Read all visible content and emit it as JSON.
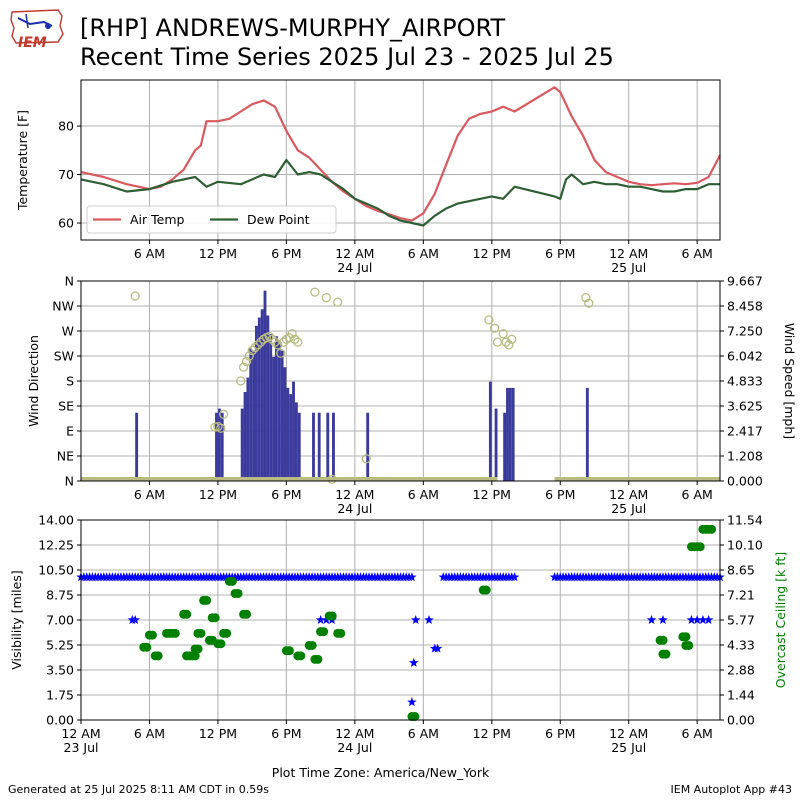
{
  "header": {
    "logo_text": "IEM",
    "title_line1": "[RHP] ANDREWS-MURPHY_AIRPORT",
    "title_line2": "Recent Time Series 2025 Jul 23 - 2025 Jul 25"
  },
  "footer": {
    "generated": "Generated at 25 Jul 2025 8:11 AM CDT in 0.59s",
    "app": "IEM Autoplot App #43"
  },
  "colors": {
    "air_temp": "#d9595f",
    "dew_point": "#2e5f33",
    "wind_speed": "#3a3a9c",
    "wind_dir": "#b9bb80",
    "visibility": "#0000ff",
    "ceiling": "#008000",
    "grid": "#b0b0b0"
  },
  "chart_data": [
    {
      "type": "line",
      "title": "",
      "xlabel": "",
      "ylabel": "Temperature [F]",
      "ylim": [
        56.5,
        89.5
      ],
      "yticks": [
        60,
        70,
        80
      ],
      "xlim": [
        "2025-07-23 00:00",
        "2025-07-25 08:00"
      ],
      "xtick_labels": [
        "6 AM",
        "12 PM",
        "6 PM",
        "12 AM",
        "6 AM",
        "12 PM",
        "6 PM",
        "12 AM",
        "6 AM"
      ],
      "xtick_hours": [
        6,
        12,
        18,
        24,
        30,
        36,
        42,
        48,
        54
      ],
      "date_labels": [
        {
          "label": "24 Jul",
          "hour": 24
        },
        {
          "label": "25 Jul",
          "hour": 48
        }
      ],
      "grid": true,
      "legend_position": "lower-left",
      "series": [
        {
          "name": "Air Temp",
          "x": [
            "2025-07-23 00:00",
            "2025-07-23 02:00",
            "2025-07-23 04:00",
            "2025-07-23 06:00",
            "2025-07-23 07:00",
            "2025-07-23 08:00",
            "2025-07-23 09:00",
            "2025-07-23 10:00",
            "2025-07-23 10:30",
            "2025-07-23 11:00",
            "2025-07-23 12:00",
            "2025-07-23 13:00",
            "2025-07-23 14:00",
            "2025-07-23 15:00",
            "2025-07-23 16:00",
            "2025-07-23 17:00",
            "2025-07-23 18:00",
            "2025-07-23 19:00",
            "2025-07-23 20:00",
            "2025-07-23 21:00",
            "2025-07-23 22:00",
            "2025-07-23 23:00",
            "2025-07-24 00:00",
            "2025-07-24 01:00",
            "2025-07-24 02:00",
            "2025-07-24 03:00",
            "2025-07-24 04:00",
            "2025-07-24 05:00",
            "2025-07-24 06:00",
            "2025-07-24 07:00",
            "2025-07-24 08:00",
            "2025-07-24 09:00",
            "2025-07-24 10:00",
            "2025-07-24 11:00",
            "2025-07-24 12:00",
            "2025-07-24 13:00",
            "2025-07-24 14:00",
            "2025-07-24 17:30",
            "2025-07-24 18:00",
            "2025-07-24 19:00",
            "2025-07-24 20:00",
            "2025-07-24 21:00",
            "2025-07-24 22:00",
            "2025-07-24 23:00",
            "2025-07-25 00:00",
            "2025-07-25 01:00",
            "2025-07-25 02:00",
            "2025-07-25 03:00",
            "2025-07-25 04:00",
            "2025-07-25 05:00",
            "2025-07-25 06:00",
            "2025-07-25 07:00",
            "2025-07-25 08:00"
          ],
          "values": [
            70.5,
            69.5,
            68,
            67,
            67.5,
            69,
            71,
            75,
            76,
            81,
            81,
            81.5,
            83,
            84.5,
            85.3,
            84,
            79,
            75,
            73.5,
            71,
            68.5,
            66.5,
            65,
            63.5,
            62.5,
            61.8,
            61,
            60.5,
            62,
            66,
            72,
            78,
            81.5,
            82.5,
            83,
            84,
            83,
            88,
            87,
            82,
            78,
            73,
            70.5,
            69.5,
            68.5,
            68,
            67.8,
            68,
            68.2,
            68,
            68.3,
            69.5,
            74
          ]
        },
        {
          "name": "Dew Point",
          "x": [
            "2025-07-23 00:00",
            "2025-07-23 02:00",
            "2025-07-23 04:00",
            "2025-07-23 06:00",
            "2025-07-23 08:00",
            "2025-07-23 10:00",
            "2025-07-23 11:00",
            "2025-07-23 12:00",
            "2025-07-23 14:00",
            "2025-07-23 16:00",
            "2025-07-23 17:00",
            "2025-07-23 18:00",
            "2025-07-23 19:00",
            "2025-07-23 20:00",
            "2025-07-23 21:00",
            "2025-07-23 22:00",
            "2025-07-23 23:00",
            "2025-07-24 00:00",
            "2025-07-24 01:00",
            "2025-07-24 02:00",
            "2025-07-24 03:00",
            "2025-07-24 04:00",
            "2025-07-24 05:00",
            "2025-07-24 06:00",
            "2025-07-24 07:00",
            "2025-07-24 08:00",
            "2025-07-24 09:00",
            "2025-07-24 10:00",
            "2025-07-24 11:00",
            "2025-07-24 12:00",
            "2025-07-24 13:00",
            "2025-07-24 14:00",
            "2025-07-24 17:30",
            "2025-07-24 18:00",
            "2025-07-24 18:30",
            "2025-07-24 19:00",
            "2025-07-24 20:00",
            "2025-07-24 21:00",
            "2025-07-24 22:00",
            "2025-07-24 23:00",
            "2025-07-25 00:00",
            "2025-07-25 01:00",
            "2025-07-25 02:00",
            "2025-07-25 03:00",
            "2025-07-25 04:00",
            "2025-07-25 05:00",
            "2025-07-25 06:00",
            "2025-07-25 07:00",
            "2025-07-25 08:00"
          ],
          "values": [
            69,
            68,
            66.5,
            67,
            68.5,
            69.5,
            67.5,
            68.5,
            68,
            70,
            69.5,
            73,
            70,
            70.5,
            70,
            68.5,
            67,
            65,
            64,
            63,
            61.5,
            60.5,
            60,
            59.5,
            61.5,
            63,
            64,
            64.5,
            65,
            65.5,
            65,
            67.5,
            65.5,
            65,
            69,
            70,
            68,
            68.5,
            68,
            68,
            67.5,
            67.5,
            67,
            66.5,
            66.5,
            67,
            67,
            68,
            68
          ]
        }
      ]
    },
    {
      "type": "bar",
      "title": "",
      "xlabel": "",
      "ylabel": "Wind Direction",
      "ylabel_right": "Wind Speed [mph]",
      "ylim": [
        0,
        360
      ],
      "ylim_right": [
        0,
        9.667
      ],
      "direction_ticks": [
        "N",
        "NE",
        "E",
        "SE",
        "S",
        "SW",
        "W",
        "NW",
        "N"
      ],
      "speed_ticks": [
        "0.000",
        "1.208",
        "2.417",
        "3.625",
        "4.833",
        "6.042",
        "7.250",
        "8.458",
        "9.667"
      ],
      "xtick_labels": [
        "6 AM",
        "12 PM",
        "6 PM",
        "12 AM",
        "6 AM",
        "12 PM",
        "6 PM",
        "12 AM",
        "6 AM"
      ],
      "xtick_hours": [
        6,
        12,
        18,
        24,
        30,
        36,
        42,
        48,
        54
      ],
      "date_labels": [
        {
          "label": "24 Jul",
          "hour": 24
        },
        {
          "label": "25 Jul",
          "hour": 48
        }
      ],
      "grid": true,
      "series": [
        {
          "name": "Wind Speed",
          "x": [
            "2025-07-23 04:45",
            "2025-07-23 11:45",
            "2025-07-23 12:00",
            "2025-07-23 12:15",
            "2025-07-23 14:00",
            "2025-07-23 14:15",
            "2025-07-23 14:30",
            "2025-07-23 14:45",
            "2025-07-23 15:00",
            "2025-07-23 15:15",
            "2025-07-23 15:30",
            "2025-07-23 15:45",
            "2025-07-23 16:00",
            "2025-07-23 16:15",
            "2025-07-23 16:30",
            "2025-07-23 16:45",
            "2025-07-23 17:00",
            "2025-07-23 17:15",
            "2025-07-23 17:30",
            "2025-07-23 17:45",
            "2025-07-23 18:00",
            "2025-07-23 18:15",
            "2025-07-23 18:30",
            "2025-07-23 18:45",
            "2025-07-23 19:00",
            "2025-07-23 20:15",
            "2025-07-23 20:45",
            "2025-07-23 21:30",
            "2025-07-23 22:00",
            "2025-07-24 01:00",
            "2025-07-24 11:45",
            "2025-07-24 12:15",
            "2025-07-24 13:00",
            "2025-07-24 13:15",
            "2025-07-24 13:30",
            "2025-07-24 13:45",
            "2025-07-24 20:15"
          ],
          "values": [
            3.3,
            3.3,
            3.5,
            3.3,
            3.5,
            4.3,
            5.0,
            6.4,
            6.3,
            7.5,
            7.9,
            8.3,
            9.2,
            8.0,
            7.1,
            6.0,
            7.0,
            6.8,
            6.3,
            5.5,
            4.5,
            4.2,
            4.8,
            3.8,
            3.3,
            3.3,
            3.3,
            3.3,
            3.3,
            3.3,
            4.8,
            3.5,
            3.3,
            4.5,
            4.5,
            4.5,
            4.5
          ]
        },
        {
          "name": "Wind Direction",
          "x": [
            "2025-07-23 04:45",
            "2025-07-23 11:45",
            "2025-07-23 12:00",
            "2025-07-23 12:15",
            "2025-07-23 12:30",
            "2025-07-23 14:00",
            "2025-07-23 14:15",
            "2025-07-23 14:30",
            "2025-07-23 14:45",
            "2025-07-23 15:00",
            "2025-07-23 15:15",
            "2025-07-23 15:30",
            "2025-07-23 15:45",
            "2025-07-23 16:00",
            "2025-07-23 16:15",
            "2025-07-23 16:30",
            "2025-07-23 16:45",
            "2025-07-23 17:00",
            "2025-07-23 17:15",
            "2025-07-23 17:30",
            "2025-07-23 17:45",
            "2025-07-23 18:00",
            "2025-07-23 18:15",
            "2025-07-23 18:30",
            "2025-07-23 18:45",
            "2025-07-23 19:00",
            "2025-07-23 20:30",
            "2025-07-23 21:30",
            "2025-07-23 22:00",
            "2025-07-23 22:30",
            "2025-07-24 01:00",
            "2025-07-24 11:45",
            "2025-07-24 12:15",
            "2025-07-24 12:30",
            "2025-07-24 13:00",
            "2025-07-24 13:15",
            "2025-07-24 13:30",
            "2025-07-24 13:45",
            "2025-07-24 20:15",
            "2025-07-24 20:30"
          ],
          "values": [
            333,
            97,
            98,
            95,
            120,
            180,
            205,
            215,
            225,
            235,
            240,
            245,
            250,
            255,
            258,
            260,
            255,
            250,
            245,
            230,
            250,
            255,
            258,
            265,
            255,
            250,
            340,
            330,
            3,
            322,
            40,
            290,
            275,
            250,
            265,
            250,
            245,
            255,
            330,
            320
          ]
        }
      ]
    },
    {
      "type": "scatter",
      "title": "",
      "xlabel": "Plot Time Zone: America/New_York",
      "ylabel": "Visibility [miles]",
      "ylabel_right": "Overcast Ceiling [k ft]",
      "ylim": [
        0,
        14
      ],
      "ylim_right": [
        0,
        11.54
      ],
      "yticks": [
        "0.00",
        "1.75",
        "3.50",
        "5.25",
        "7.00",
        "8.75",
        "10.50",
        "12.25",
        "14.00"
      ],
      "yticks_right": [
        "0.00",
        "1.44",
        "2.88",
        "4.33",
        "5.77",
        "7.21",
        "8.65",
        "10.10",
        "11.54"
      ],
      "xtick_labels": [
        "12 AM",
        "6 AM",
        "12 PM",
        "6 PM",
        "12 AM",
        "6 AM",
        "12 PM",
        "6 PM",
        "12 AM",
        "6 AM"
      ],
      "xtick_hours": [
        0,
        6,
        12,
        18,
        24,
        30,
        36,
        42,
        48,
        54
      ],
      "date_labels": [
        {
          "label": "23 Jul",
          "hour": 0
        },
        {
          "label": "24 Jul",
          "hour": 24
        },
        {
          "label": "25 Jul",
          "hour": 48
        }
      ],
      "grid": true,
      "series": [
        {
          "name": "Visibility",
          "ranges": [
            {
              "start": "2025-07-23 00:00",
              "end": "2025-07-24 05:00",
              "value": 10
            },
            {
              "start": "2025-07-24 07:45",
              "end": "2025-07-24 14:00",
              "value": 10
            },
            {
              "start": "2025-07-24 17:30",
              "end": "2025-07-25 08:00",
              "value": 10
            }
          ],
          "x": [
            "2025-07-23 04:30",
            "2025-07-23 04:45",
            "2025-07-23 21:00",
            "2025-07-23 21:30",
            "2025-07-23 22:00",
            "2025-07-24 05:00",
            "2025-07-24 05:10",
            "2025-07-24 05:20",
            "2025-07-24 06:30",
            "2025-07-24 07:00",
            "2025-07-24 07:15",
            "2025-07-25 02:00",
            "2025-07-25 03:00",
            "2025-07-25 05:30",
            "2025-07-25 06:00",
            "2025-07-25 06:30",
            "2025-07-25 07:00"
          ],
          "values": [
            7,
            7,
            7,
            7,
            7,
            1.25,
            4,
            7,
            7,
            5,
            5,
            7,
            7,
            7,
            7,
            7,
            7
          ]
        },
        {
          "name": "Overcast Ceiling",
          "x": [
            "2025-07-23 05:30",
            "2025-07-23 06:00",
            "2025-07-23 06:30",
            "2025-07-23 07:30",
            "2025-07-23 08:00",
            "2025-07-23 09:00",
            "2025-07-23 09:15",
            "2025-07-23 09:45",
            "2025-07-23 10:00",
            "2025-07-23 10:15",
            "2025-07-23 10:45",
            "2025-07-23 11:15",
            "2025-07-23 11:30",
            "2025-07-23 12:00",
            "2025-07-23 12:30",
            "2025-07-23 13:00",
            "2025-07-23 13:30",
            "2025-07-23 14:15",
            "2025-07-23 18:00",
            "2025-07-23 19:00",
            "2025-07-23 20:00",
            "2025-07-23 20:30",
            "2025-07-23 21:00",
            "2025-07-23 21:45",
            "2025-07-23 22:30",
            "2025-07-24 05:00",
            "2025-07-24 11:15",
            "2025-07-25 02:45",
            "2025-07-25 03:00",
            "2025-07-25 04:45",
            "2025-07-25 05:00",
            "2025-07-25 05:30",
            "2025-07-25 06:00",
            "2025-07-25 06:30",
            "2025-07-25 07:00"
          ],
          "values": [
            4.2,
            4.9,
            3.7,
            5.0,
            5.0,
            6.1,
            3.7,
            3.7,
            4.1,
            5.0,
            6.9,
            4.6,
            5.9,
            4.4,
            5.0,
            8.0,
            7.3,
            6.1,
            4.0,
            3.7,
            4.3,
            3.5,
            5.1,
            6.0,
            5.0,
            0.2,
            7.5,
            4.6,
            3.8,
            4.8,
            4.3,
            10.0,
            10.0,
            11.0,
            11.0
          ]
        }
      ]
    }
  ]
}
